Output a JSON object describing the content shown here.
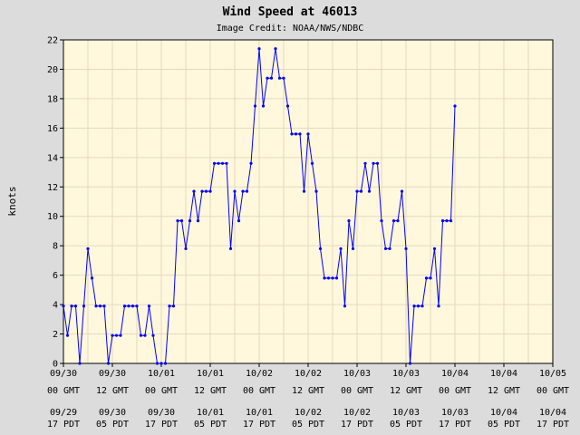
{
  "chart_data": {
    "type": "line",
    "title": "Wind Speed at 46013",
    "subtitle": "Image Credit: NOAA/NWS/NDBC",
    "ylabel": "knots",
    "ylim": [
      0,
      22
    ],
    "yticks": [
      0,
      2,
      4,
      6,
      8,
      10,
      12,
      14,
      16,
      18,
      20,
      22
    ],
    "x_range_hours": [
      0,
      120
    ],
    "x_ticks": [
      {
        "gmt": [
          "09/30",
          "00 GMT"
        ],
        "pdt": [
          "09/29",
          "17 PDT"
        ]
      },
      {
        "gmt": [
          "09/30",
          "12 GMT"
        ],
        "pdt": [
          "09/30",
          "05 PDT"
        ]
      },
      {
        "gmt": [
          "10/01",
          "00 GMT"
        ],
        "pdt": [
          "09/30",
          "17 PDT"
        ]
      },
      {
        "gmt": [
          "10/01",
          "12 GMT"
        ],
        "pdt": [
          "10/01",
          "05 PDT"
        ]
      },
      {
        "gmt": [
          "10/02",
          "00 GMT"
        ],
        "pdt": [
          "10/01",
          "17 PDT"
        ]
      },
      {
        "gmt": [
          "10/02",
          "12 GMT"
        ],
        "pdt": [
          "10/02",
          "05 PDT"
        ]
      },
      {
        "gmt": [
          "10/03",
          "00 GMT"
        ],
        "pdt": [
          "10/02",
          "17 PDT"
        ]
      },
      {
        "gmt": [
          "10/03",
          "12 GMT"
        ],
        "pdt": [
          "10/03",
          "05 PDT"
        ]
      },
      {
        "gmt": [
          "10/04",
          "00 GMT"
        ],
        "pdt": [
          "10/03",
          "17 PDT"
        ]
      },
      {
        "gmt": [
          "10/04",
          "12 GMT"
        ],
        "pdt": [
          "10/04",
          "05 PDT"
        ]
      },
      {
        "gmt": [
          "10/05",
          "00 GMT"
        ],
        "pdt": [
          "10/04",
          "17 PDT"
        ]
      }
    ],
    "grid": true,
    "colors": {
      "line": "#0000ff",
      "plot_bg": "#fff8dc",
      "page_bg": "#dcdcdc",
      "grid": "#e6d8c0"
    },
    "series": [
      {
        "values": [
          [
            0,
            3.9
          ],
          [
            1,
            1.9
          ],
          [
            2,
            3.9
          ],
          [
            3,
            3.9
          ],
          [
            4,
            0
          ],
          [
            5,
            3.9
          ],
          [
            6,
            7.8
          ],
          [
            7,
            5.8
          ],
          [
            8,
            3.9
          ],
          [
            9,
            3.9
          ],
          [
            10,
            3.9
          ],
          [
            11,
            0
          ],
          [
            12,
            1.9
          ],
          [
            13,
            1.9
          ],
          [
            14,
            1.9
          ],
          [
            15,
            3.9
          ],
          [
            16,
            3.9
          ],
          [
            17,
            3.9
          ],
          [
            18,
            3.9
          ],
          [
            19,
            1.9
          ],
          [
            20,
            1.9
          ],
          [
            21,
            3.9
          ],
          [
            22,
            1.9
          ],
          [
            23,
            0
          ],
          [
            24,
            0
          ],
          [
            25,
            0
          ],
          [
            26,
            3.9
          ],
          [
            27,
            3.9
          ],
          [
            28,
            9.7
          ],
          [
            29,
            9.7
          ],
          [
            30,
            7.8
          ],
          [
            31,
            9.7
          ],
          [
            32,
            11.7
          ],
          [
            33,
            9.7
          ],
          [
            34,
            11.7
          ],
          [
            35,
            11.7
          ],
          [
            36,
            11.7
          ],
          [
            37,
            13.6
          ],
          [
            38,
            13.6
          ],
          [
            39,
            13.6
          ],
          [
            40,
            13.6
          ],
          [
            41,
            7.8
          ],
          [
            42,
            11.7
          ],
          [
            43,
            9.7
          ],
          [
            44,
            11.7
          ],
          [
            45,
            11.7
          ],
          [
            46,
            13.6
          ],
          [
            47,
            17.5
          ],
          [
            48,
            21.4
          ],
          [
            49,
            17.5
          ],
          [
            50,
            19.4
          ],
          [
            51,
            19.4
          ],
          [
            52,
            21.4
          ],
          [
            53,
            19.4
          ],
          [
            54,
            19.4
          ],
          [
            55,
            17.5
          ],
          [
            56,
            15.6
          ],
          [
            57,
            15.6
          ],
          [
            58,
            15.6
          ],
          [
            59,
            11.7
          ],
          [
            60,
            15.6
          ],
          [
            61,
            13.6
          ],
          [
            62,
            11.7
          ],
          [
            63,
            7.8
          ],
          [
            64,
            5.8
          ],
          [
            65,
            5.8
          ],
          [
            66,
            5.8
          ],
          [
            67,
            5.8
          ],
          [
            68,
            7.8
          ],
          [
            69,
            3.9
          ],
          [
            70,
            9.7
          ],
          [
            71,
            7.8
          ],
          [
            72,
            11.7
          ],
          [
            73,
            11.7
          ],
          [
            74,
            13.6
          ],
          [
            75,
            11.7
          ],
          [
            76,
            13.6
          ],
          [
            77,
            13.6
          ],
          [
            78,
            9.7
          ],
          [
            79,
            7.8
          ],
          [
            80,
            7.8
          ],
          [
            81,
            9.7
          ],
          [
            82,
            9.7
          ],
          [
            83,
            11.7
          ],
          [
            84,
            7.8
          ],
          [
            85,
            0
          ],
          [
            86,
            3.9
          ],
          [
            87,
            3.9
          ],
          [
            88,
            3.9
          ],
          [
            89,
            5.8
          ],
          [
            90,
            5.8
          ],
          [
            91,
            7.8
          ],
          [
            92,
            3.9
          ],
          [
            93,
            9.7
          ],
          [
            94,
            9.7
          ],
          [
            95,
            9.7
          ],
          [
            96,
            17.5
          ]
        ]
      }
    ]
  }
}
